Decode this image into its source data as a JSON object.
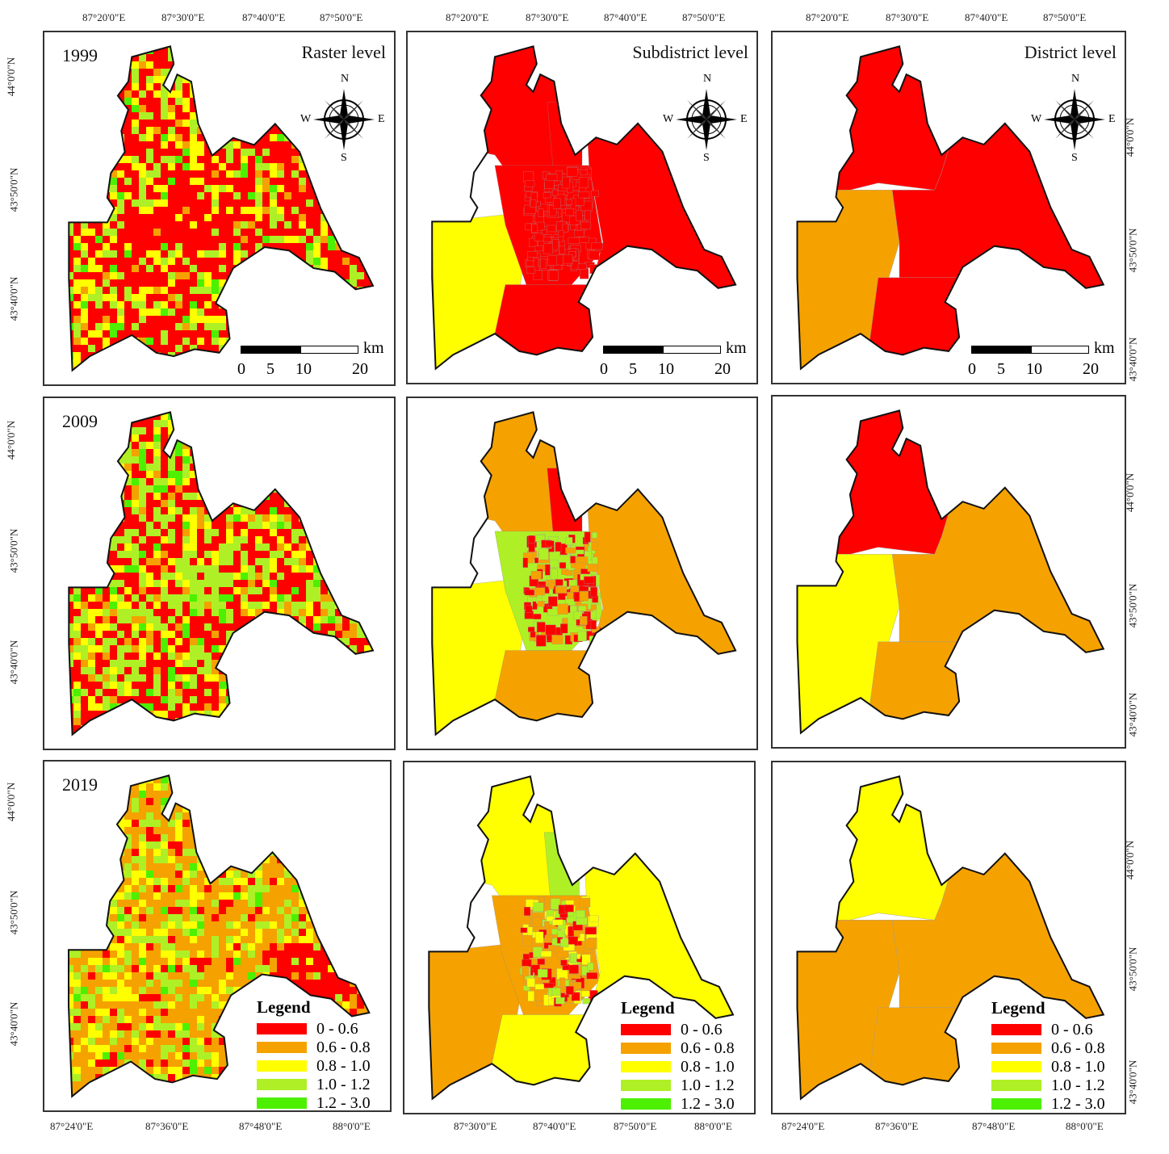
{
  "levels": [
    "Raster level",
    "Subdistrict level",
    "District level"
  ],
  "years": [
    "1999",
    "2009",
    "2019"
  ],
  "compass": {
    "n": "N",
    "s": "S",
    "e": "E",
    "w": "W"
  },
  "scale": {
    "unit": "km",
    "labels": [
      "0",
      "5",
      "10",
      "20"
    ]
  },
  "legend": {
    "title": "Legend",
    "classes": [
      {
        "label": "0 - 0.6",
        "color": "#ff0000"
      },
      {
        "label": "0.6 - 0.8",
        "color": "#f5a200"
      },
      {
        "label": "0.8 - 1.0",
        "color": "#ffff00"
      },
      {
        "label": "1.0 - 1.2",
        "color": "#aef025"
      },
      {
        "label": "1.2 - 3.0",
        "color": "#4cf000"
      }
    ]
  },
  "ticks": {
    "top": [
      [
        "87°20'0\"E",
        "87°30'0\"E",
        "87°40'0\"E",
        "87°50'0\"E"
      ],
      [
        "87°20'0\"E",
        "87°30'0\"E",
        "87°40'0\"E",
        "87°50'0\"E"
      ],
      [
        "87°20'0\"E",
        "87°30'0\"E",
        "87°40'0\"E",
        "87°50'0\"E"
      ]
    ],
    "bottom": [
      [
        "87°24'0\"E",
        "87°36'0\"E",
        "87°48'0\"E",
        "88°0'0\"E"
      ],
      [
        "87°30'0\"E",
        "87°40'0\"E",
        "87°50'0\"E",
        "88°0'0\"E"
      ],
      [
        "87°24'0\"E",
        "87°36'0\"E",
        "87°48'0\"E",
        "88°0'0\"E"
      ]
    ],
    "left": [
      [
        "44°0'0\"N",
        "43°50'0\"N",
        "43°40'0\"N"
      ],
      [
        "44°0'0\"N",
        "43°50'0\"N",
        "43°40'0\"N"
      ],
      [
        "44°0'0\"N",
        "43°50'0\"N",
        "43°40'0\"N"
      ]
    ],
    "right": [
      [
        "44°0'0\"N",
        "43°50'0\"N",
        "43°40'0\"N"
      ],
      [
        "44°0'0\"N",
        "43°50'0\"N",
        "43°40'0\"N"
      ],
      [
        "44°0'0\"N",
        "43°50'0\"N",
        "43°40'0\"N"
      ]
    ]
  },
  "maps": {
    "subdistrict": [
      {
        "nw": "#ff0000",
        "w": "#ffff00",
        "c": "#ff0000",
        "e": "#ff0000",
        "s": "#ff0000",
        "ne": "#ff0000",
        "wa": "#f5a200"
      },
      {
        "nw": "#f5a200",
        "w": "#ffff00",
        "c": "#aef025",
        "e": "#f5a200",
        "s": "#f5a200",
        "ne": "#ff0000",
        "wa": "#ffff00"
      },
      {
        "nw": "#ffff00",
        "w": "#f5a200",
        "c": "#f5a200",
        "e": "#ffff00",
        "s": "#ffff00",
        "ne": "#aef025",
        "wa": "#f5a200"
      }
    ],
    "district": [
      {
        "n": "#ff0000",
        "w": "#f5a200",
        "e": "#ff0000",
        "s": "#ff0000"
      },
      {
        "n": "#ff0000",
        "w": "#ffff00",
        "e": "#f5a200",
        "s": "#f5a200"
      },
      {
        "n": "#ffff00",
        "w": "#f5a200",
        "e": "#f5a200",
        "s": "#f5a200"
      }
    ],
    "raster_mix": [
      {
        "red": 0.55,
        "orange": 0.05,
        "yellow": 0.18,
        "lgreen": 0.17,
        "green": 0.05
      },
      {
        "red": 0.42,
        "orange": 0.08,
        "yellow": 0.15,
        "lgreen": 0.28,
        "green": 0.07
      },
      {
        "red": 0.08,
        "orange": 0.47,
        "yellow": 0.18,
        "lgreen": 0.22,
        "green": 0.05
      }
    ]
  }
}
